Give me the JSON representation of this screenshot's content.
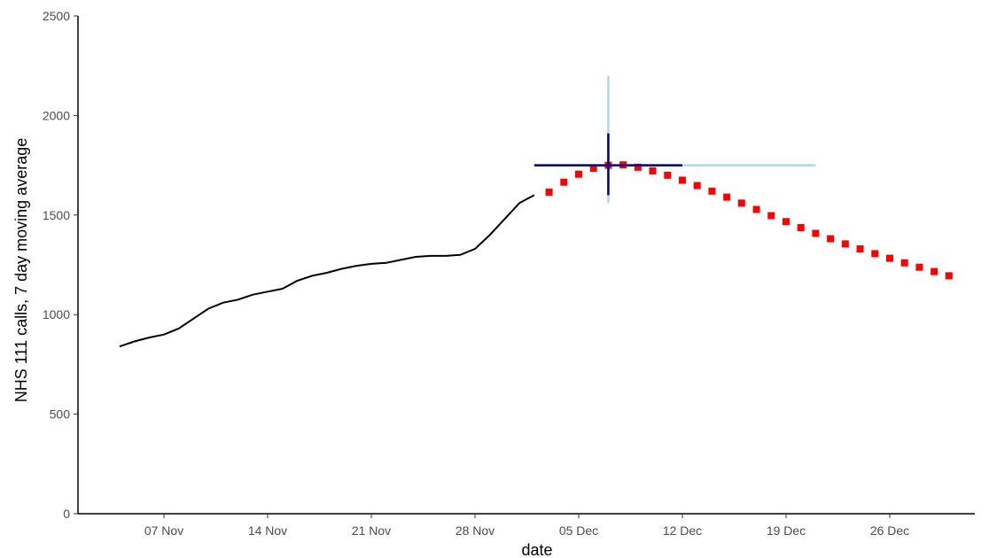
{
  "chart_data": {
    "type": "line",
    "xlabel": "date",
    "ylabel": "NHS 111 calls, 7 day moving average",
    "ylim": [
      0,
      2500
    ],
    "xlim": [
      "2021-11-01",
      "2021-12-31"
    ],
    "y_ticks": [
      "0",
      "500",
      "1000",
      "1500",
      "2000",
      "2500"
    ],
    "x_ticks": [
      {
        "date": "2021-11-07",
        "label": "07 Nov"
      },
      {
        "date": "2021-11-14",
        "label": "14 Nov"
      },
      {
        "date": "2021-11-21",
        "label": "21 Nov"
      },
      {
        "date": "2021-11-28",
        "label": "28 Nov"
      },
      {
        "date": "2021-12-05",
        "label": "05 Dec"
      },
      {
        "date": "2021-12-12",
        "label": "12 Dec"
      },
      {
        "date": "2021-12-19",
        "label": "19 Dec"
      },
      {
        "date": "2021-12-26",
        "label": "26 Dec"
      }
    ],
    "grid": false,
    "legend": "none",
    "series": [
      {
        "style": "solid-line",
        "color": "#000000",
        "x": [
          "2021-11-04",
          "2021-11-05",
          "2021-11-06",
          "2021-11-07",
          "2021-11-08",
          "2021-11-09",
          "2021-11-10",
          "2021-11-11",
          "2021-11-12",
          "2021-11-13",
          "2021-11-14",
          "2021-11-15",
          "2021-11-16",
          "2021-11-17",
          "2021-11-18",
          "2021-11-19",
          "2021-11-20",
          "2021-11-21",
          "2021-11-22",
          "2021-11-23",
          "2021-11-24",
          "2021-11-25",
          "2021-11-26",
          "2021-11-27",
          "2021-11-28",
          "2021-11-29",
          "2021-11-30",
          "2021-12-01",
          "2021-12-02"
        ],
        "y": [
          840,
          865,
          885,
          900,
          930,
          980,
          1030,
          1060,
          1075,
          1100,
          1115,
          1130,
          1170,
          1195,
          1210,
          1230,
          1245,
          1255,
          1260,
          1275,
          1290,
          1295,
          1295,
          1300,
          1330,
          1400,
          1480,
          1560,
          1600
        ]
      },
      {
        "style": "dotted-squares",
        "color": "#ff0000",
        "x": [
          "2021-12-03",
          "2021-12-04",
          "2021-12-05",
          "2021-12-06",
          "2021-12-07",
          "2021-12-08",
          "2021-12-09",
          "2021-12-10",
          "2021-12-11",
          "2021-12-12",
          "2021-12-13",
          "2021-12-14",
          "2021-12-15",
          "2021-12-16",
          "2021-12-17",
          "2021-12-18",
          "2021-12-19",
          "2021-12-20",
          "2021-12-21",
          "2021-12-22",
          "2021-12-23",
          "2021-12-24",
          "2021-12-25",
          "2021-12-26",
          "2021-12-27",
          "2021-12-28",
          "2021-12-29",
          "2021-12-30"
        ],
        "y": [
          1615,
          1665,
          1705,
          1735,
          1750,
          1752,
          1740,
          1722,
          1700,
          1675,
          1648,
          1620,
          1590,
          1560,
          1528,
          1497,
          1467,
          1437,
          1408,
          1381,
          1355,
          1330,
          1306,
          1283,
          1260,
          1238,
          1216,
          1195
        ]
      }
    ],
    "error_crosses": [
      {
        "color": "#add8e6",
        "center": {
          "x": "2021-12-07",
          "y": 1750
        },
        "x_range": [
          "2021-12-02",
          "2021-12-21"
        ],
        "y_range": [
          1560,
          2200
        ]
      },
      {
        "color": "#000080",
        "center": {
          "x": "2021-12-07",
          "y": 1750
        },
        "x_range": [
          "2021-12-02",
          "2021-12-12"
        ],
        "y_range": [
          1600,
          1910
        ]
      }
    ]
  }
}
